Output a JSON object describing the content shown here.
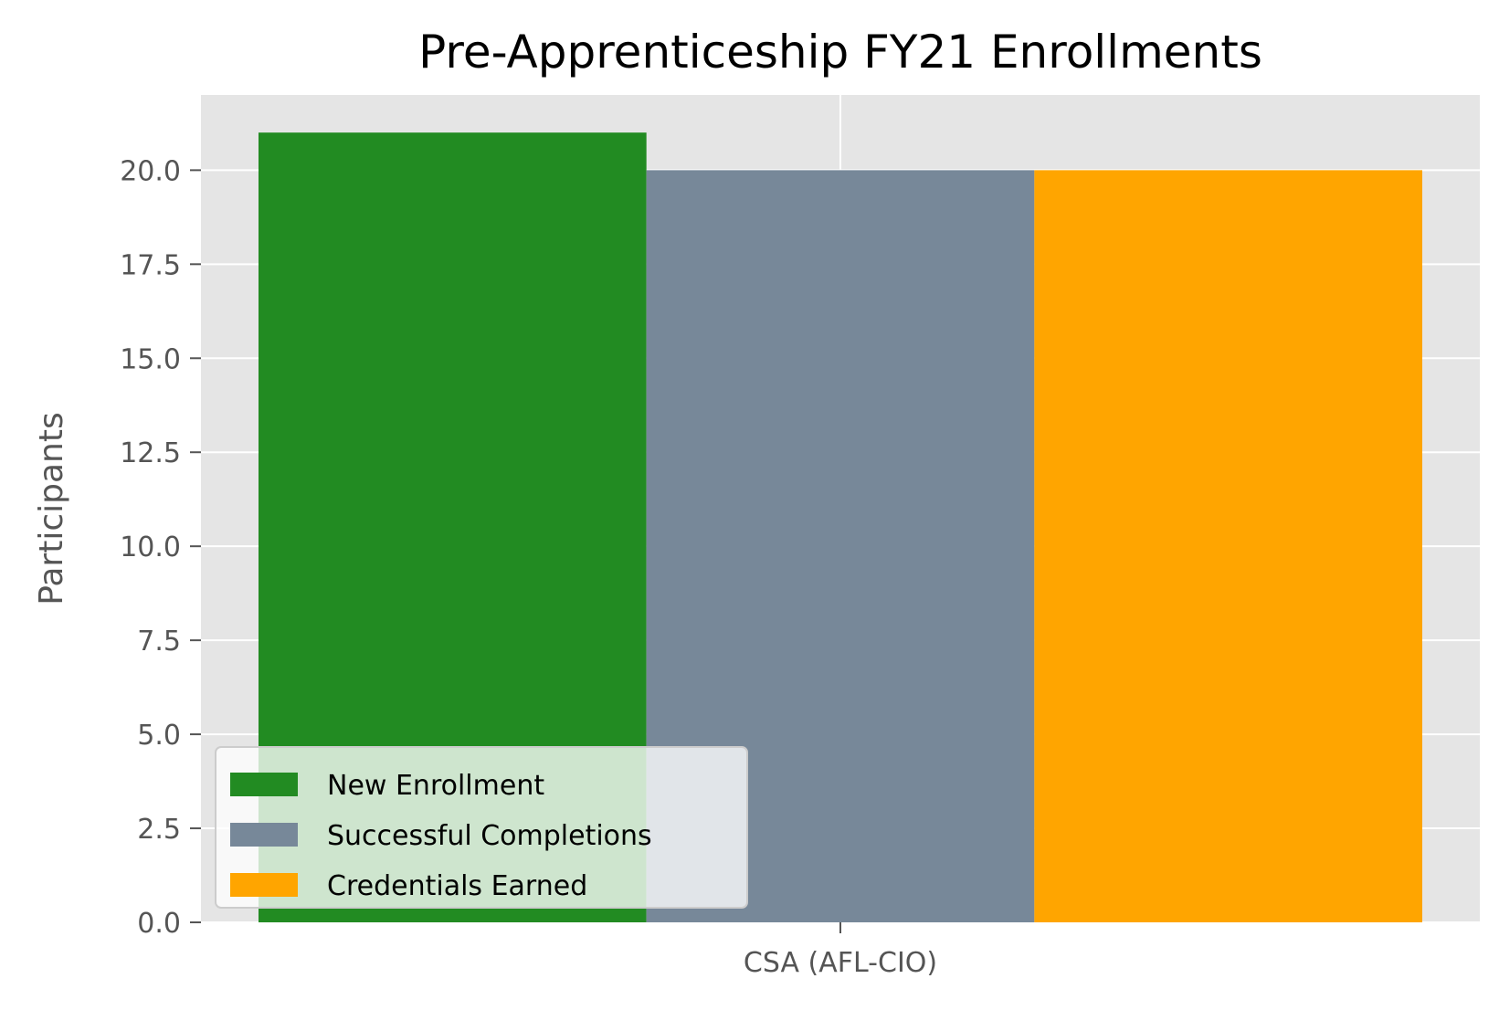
{
  "chart_data": {
    "type": "bar",
    "title": "Pre-Apprenticeship FY21 Enrollments",
    "xlabel": "",
    "ylabel": "Participants",
    "categories": [
      "CSA (AFL-CIO)"
    ],
    "series": [
      {
        "name": "New Enrollment",
        "values": [
          21
        ],
        "color": "#228b22"
      },
      {
        "name": "Successful Completions",
        "values": [
          20
        ],
        "color": "#778899"
      },
      {
        "name": "Credentials Earned",
        "values": [
          20
        ],
        "color": "#ffa500"
      }
    ],
    "ylim": [
      0,
      22
    ],
    "yticks": [
      0.0,
      2.5,
      5.0,
      7.5,
      10.0,
      12.5,
      15.0,
      17.5,
      20.0
    ],
    "ytick_labels": [
      "0.0",
      "2.5",
      "5.0",
      "7.5",
      "10.0",
      "12.5",
      "15.0",
      "17.5",
      "20.0"
    ],
    "grid": true,
    "legend_position": "lower-left",
    "colors": {
      "background": "#e5e5e5",
      "grid": "#ffffff"
    }
  }
}
